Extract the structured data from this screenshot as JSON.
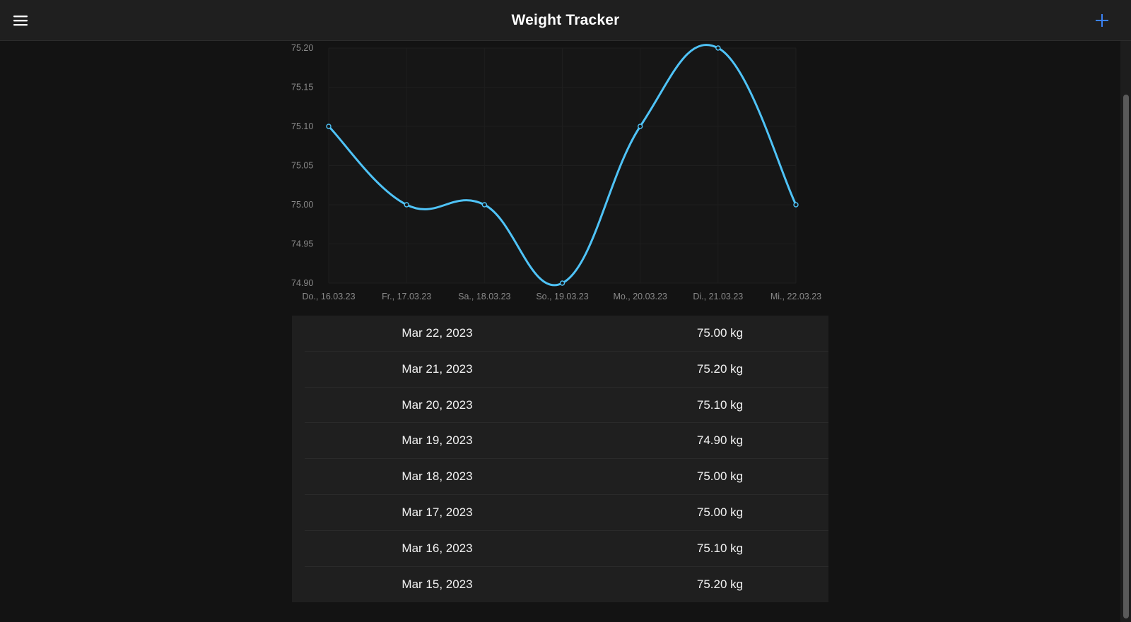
{
  "header": {
    "title": "Weight Tracker",
    "menu_icon": "hamburger-menu-icon",
    "add_icon": "plus-icon"
  },
  "colors": {
    "background": "#131313",
    "header": "#1f1f1f",
    "line": "#4fc3f7",
    "accent": "#3b82f6"
  },
  "chart_data": {
    "type": "line",
    "x": [
      "Do., 16.03.23",
      "Fr., 17.03.23",
      "Sa., 18.03.23",
      "So., 19.03.23",
      "Mo., 20.03.23",
      "Di., 21.03.23",
      "Mi., 22.03.23"
    ],
    "values": [
      75.1,
      75.0,
      75.0,
      74.9,
      75.1,
      75.2,
      75.0
    ],
    "yticks": [
      "75.20",
      "75.15",
      "75.10",
      "75.05",
      "75.00",
      "74.95",
      "74.90"
    ],
    "ylim": [
      74.9,
      75.2
    ],
    "grid": true,
    "smooth": true
  },
  "entries": [
    {
      "date": "Mar 22, 2023",
      "weight": "75.00 kg"
    },
    {
      "date": "Mar 21, 2023",
      "weight": "75.20 kg"
    },
    {
      "date": "Mar 20, 2023",
      "weight": "75.10 kg"
    },
    {
      "date": "Mar 19, 2023",
      "weight": "74.90 kg"
    },
    {
      "date": "Mar 18, 2023",
      "weight": "75.00 kg"
    },
    {
      "date": "Mar 17, 2023",
      "weight": "75.00 kg"
    },
    {
      "date": "Mar 16, 2023",
      "weight": "75.10 kg"
    },
    {
      "date": "Mar 15, 2023",
      "weight": "75.20 kg"
    }
  ]
}
